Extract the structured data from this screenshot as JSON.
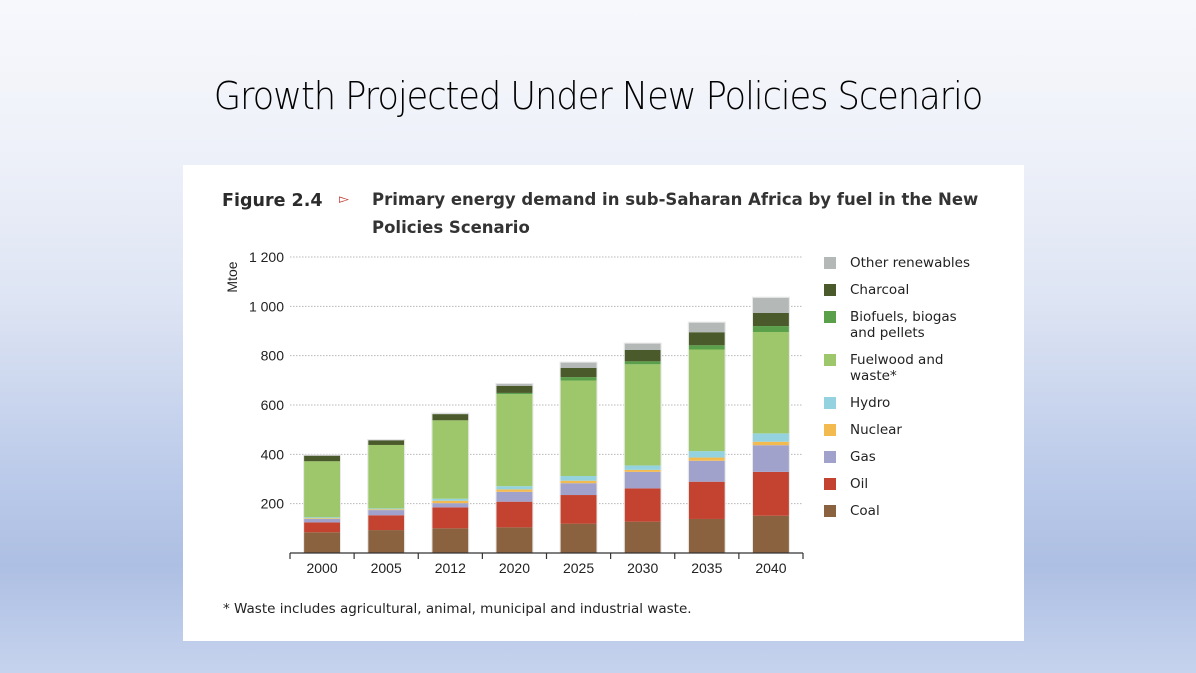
{
  "slide": {
    "title": "Growth Projected Under New Policies Scenario"
  },
  "figure": {
    "number": "Figure 2.4",
    "arrow_glyph": "▻",
    "title": "Primary energy demand in sub-Saharan Africa by fuel in the New Policies Scenario",
    "footnote": "* Waste includes agricultural, animal, municipal and industrial waste."
  },
  "chart_data": {
    "type": "bar",
    "stacked": true,
    "title": "Primary energy demand in sub-Saharan Africa by fuel in the New Policies Scenario",
    "xlabel": "",
    "ylabel": "Mtoe",
    "ylim": [
      0,
      1200
    ],
    "yticks": [
      200,
      400,
      600,
      800,
      1000,
      1200
    ],
    "ytick_labels": [
      "200",
      "400",
      "600",
      "800",
      "1 000",
      "1 200"
    ],
    "grid": true,
    "legend_position": "right",
    "categories": [
      "2000",
      "2005",
      "2012",
      "2020",
      "2025",
      "2030",
      "2035",
      "2040"
    ],
    "series": [
      {
        "name": "Coal",
        "color": "#8b6240",
        "values": [
          84,
          93,
          100,
          104,
          119,
          127,
          138,
          151
        ]
      },
      {
        "name": "Oil",
        "color": "#c44230",
        "values": [
          40,
          60,
          85,
          104,
          116,
          135,
          151,
          178
        ]
      },
      {
        "name": "Gas",
        "color": "#a0a2cc",
        "values": [
          14,
          21,
          17,
          40,
          48,
          67,
          85,
          108
        ]
      },
      {
        "name": "Nuclear",
        "color": "#f3bb4f",
        "values": [
          3,
          3,
          10,
          10,
          10,
          8,
          13,
          14
        ]
      },
      {
        "name": "Hydro",
        "color": "#93d2de",
        "values": [
          4,
          4,
          8,
          13,
          19,
          18,
          26,
          34
        ]
      },
      {
        "name": "Fuelwood and waste*",
        "color": "#9dc76a",
        "values": [
          227,
          257,
          318,
          373,
          387,
          410,
          412,
          411
        ]
      },
      {
        "name": "Biofuels, biogas and pellets",
        "color": "#5aa04a",
        "values": [
          0,
          0,
          0,
          5,
          14,
          12,
          17,
          24
        ]
      },
      {
        "name": "Charcoal",
        "color": "#4a5a2a",
        "values": [
          23,
          19,
          25,
          28,
          37,
          46,
          53,
          53
        ]
      },
      {
        "name": "Other renewables",
        "color": "#b4b9b7",
        "values": [
          1,
          1,
          2,
          8,
          22,
          26,
          39,
          62
        ]
      }
    ],
    "legend_order": [
      "Other renewables",
      "Charcoal",
      "Biofuels, biogas and pellets",
      "Fuelwood and waste*",
      "Hydro",
      "Nuclear",
      "Gas",
      "Oil",
      "Coal"
    ],
    "legend_labels": [
      [
        "Other renewables"
      ],
      [
        "Charcoal"
      ],
      [
        "Biofuels, biogas",
        "and pellets"
      ],
      [
        "Fuelwood and",
        "waste*"
      ],
      [
        "Hydro"
      ],
      [
        "Nuclear"
      ],
      [
        "Gas"
      ],
      [
        "Oil"
      ],
      [
        "Coal"
      ]
    ]
  }
}
